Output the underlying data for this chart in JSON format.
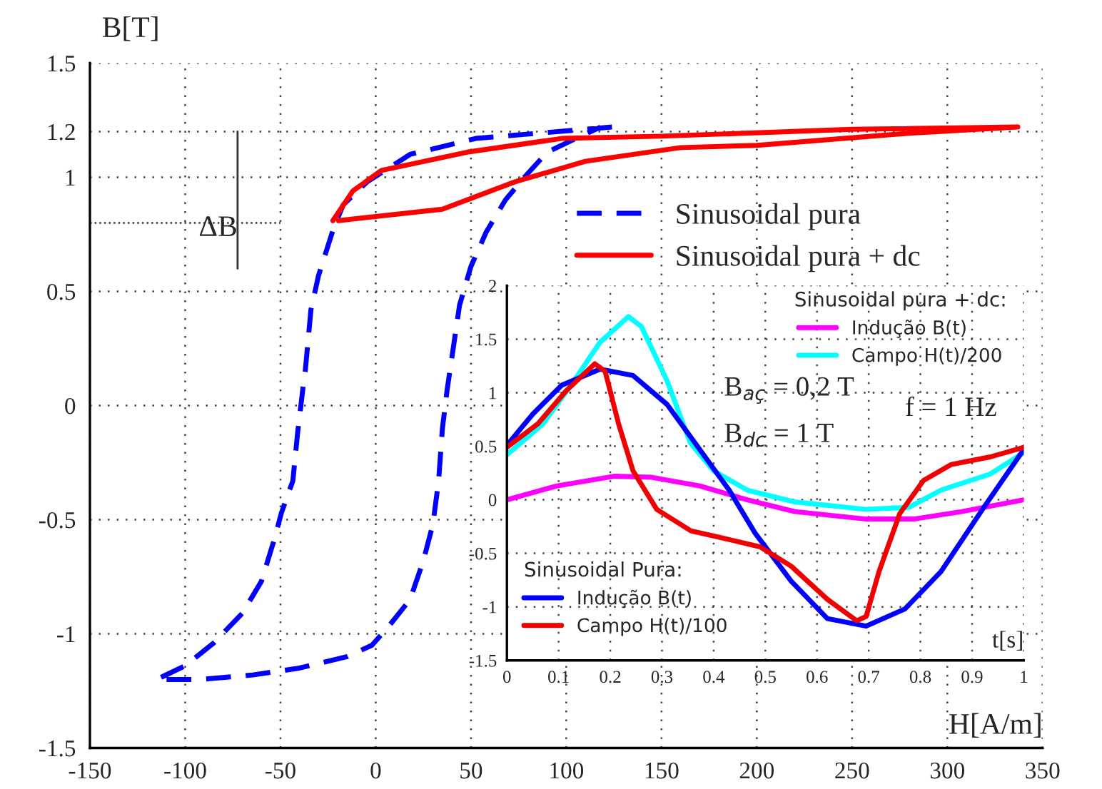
{
  "chart_data": [
    {
      "type": "line",
      "xlabel": "H[A/m]",
      "ylabel": "B[T]",
      "xlim": [
        -150,
        350
      ],
      "xticks": [
        -150,
        -100,
        -50,
        0,
        50,
        100,
        150,
        200,
        250,
        300,
        350
      ],
      "ylim": [
        -1.5,
        1.5
      ],
      "yticks": [
        -1.5,
        -1,
        -0.5,
        0,
        0.5,
        1,
        1.2,
        1.5
      ],
      "grid": true,
      "legend": "top right",
      "annotations": [
        "ΔB"
      ],
      "ref_lines": [
        {
          "axis": "y",
          "value": 0.8,
          "line_style": "dotted",
          "color": "#333333"
        }
      ],
      "series": [
        {
          "name": "Sinusoidal pura",
          "color": "#0000ff",
          "line_style": "dashed",
          "x": [
            124,
            52.5,
            18,
            -4.5,
            -17,
            -22,
            -30,
            -34,
            -37,
            -38,
            -41,
            -43.5,
            -49.5,
            -53,
            -60,
            -70,
            -85,
            -100,
            -115,
            -107,
            -92,
            -64.5,
            -40,
            -15,
            -2,
            7.5,
            18,
            25,
            30,
            33,
            35,
            37.5,
            44,
            50,
            58,
            68,
            78,
            90,
            105,
            118
          ],
          "values": [
            1.22,
            1.17,
            1.1,
            0.98,
            0.88,
            0.78,
            0.57,
            0.42,
            0.15,
            0.09,
            -0.12,
            -0.33,
            -0.47,
            -0.58,
            -0.77,
            -0.91,
            -1.04,
            -1.14,
            -1.2,
            -1.2,
            -1.2,
            -1.18,
            -1.15,
            -1.1,
            -1.05,
            -0.96,
            -0.85,
            -0.68,
            -0.52,
            -0.33,
            -0.1,
            0.07,
            0.44,
            0.61,
            0.76,
            0.9,
            1.0,
            1.11,
            1.17,
            1.22
          ]
        },
        {
          "name": "Sinusoidal pura + dc",
          "color": "#ff0000",
          "line_style": "solid",
          "x": [
            -22.5,
            -12,
            3,
            48,
            97.5,
            150,
            250,
            337,
            275,
            200,
            160,
            110,
            73,
            35,
            -19.5
          ],
          "values": [
            0.81,
            0.94,
            1.03,
            1.11,
            1.17,
            1.18,
            1.21,
            1.22,
            1.19,
            1.14,
            1.13,
            1.07,
            0.98,
            0.86,
            0.81
          ]
        }
      ]
    },
    {
      "type": "line",
      "xlabel": "t[s]",
      "xlim": [
        0,
        1
      ],
      "xticks": [
        0,
        0.1,
        0.2,
        0.3,
        0.4,
        0.5,
        0.6,
        0.7,
        0.8,
        0.9,
        1
      ],
      "ylim": [
        -1.5,
        2
      ],
      "yticks": [
        -1.5,
        -1,
        -0.5,
        0,
        0.5,
        1,
        1.5,
        2
      ],
      "grid": true,
      "legend": "bottom left",
      "legend_title": "Sinusoidal pura + dc:",
      "annotations": [
        "Sinusoidal Pura:",
        "B$_{aç}$ = 0,2 T",
        "B$_{dc}$ = 1 T",
        "f = 1 Hz"
      ],
      "series": [
        {
          "name": "Indução B(t)",
          "color": "#ff00ff",
          "x": [
            0,
            0.097,
            0.207,
            0.28,
            0.373,
            0.465,
            0.557,
            0.695,
            0.787,
            0.88,
            1
          ],
          "values": [
            0,
            0.13,
            0.22,
            0.21,
            0.13,
            0,
            -0.11,
            -0.18,
            -0.18,
            -0.11,
            0
          ]
        },
        {
          "name": "Campo H(t)/200",
          "color": "#00ffff",
          "x": [
            0,
            0.07,
            0.124,
            0.18,
            0.235,
            0.26,
            0.31,
            0.355,
            0.4,
            0.465,
            0.557,
            0.695,
            0.778,
            0.84,
            0.935,
            1
          ],
          "values": [
            0.42,
            0.71,
            1.07,
            1.47,
            1.71,
            1.62,
            1.11,
            0.53,
            0.27,
            0.09,
            -0.02,
            -0.09,
            -0.07,
            0.09,
            0.24,
            0.44
          ]
        },
        {
          "name": "Indução B(t)",
          "color": "#0000ff",
          "x": [
            0,
            0.05,
            0.106,
            0.18,
            0.244,
            0.31,
            0.37,
            0.43,
            0.48,
            0.55,
            0.62,
            0.695,
            0.77,
            0.84,
            0.92,
            1
          ],
          "values": [
            0.51,
            0.8,
            1.07,
            1.22,
            1.16,
            0.89,
            0.49,
            0.09,
            -0.31,
            -0.76,
            -1.11,
            -1.18,
            -1.02,
            -0.67,
            -0.09,
            0.47
          ]
        },
        {
          "name": "Campo H(t)/100",
          "color": "#f00000",
          "x": [
            0,
            0.06,
            0.115,
            0.17,
            0.19,
            0.216,
            0.244,
            0.29,
            0.356,
            0.42,
            0.49,
            0.55,
            0.62,
            0.677,
            0.695,
            0.72,
            0.76,
            0.806,
            0.86,
            0.935,
            1
          ],
          "values": [
            0.49,
            0.71,
            1.02,
            1.27,
            1.2,
            0.71,
            0.27,
            -0.09,
            -0.29,
            -0.36,
            -0.44,
            -0.62,
            -0.93,
            -1.13,
            -1.09,
            -0.67,
            -0.13,
            0.18,
            0.33,
            0.4,
            0.49
          ]
        }
      ]
    }
  ]
}
